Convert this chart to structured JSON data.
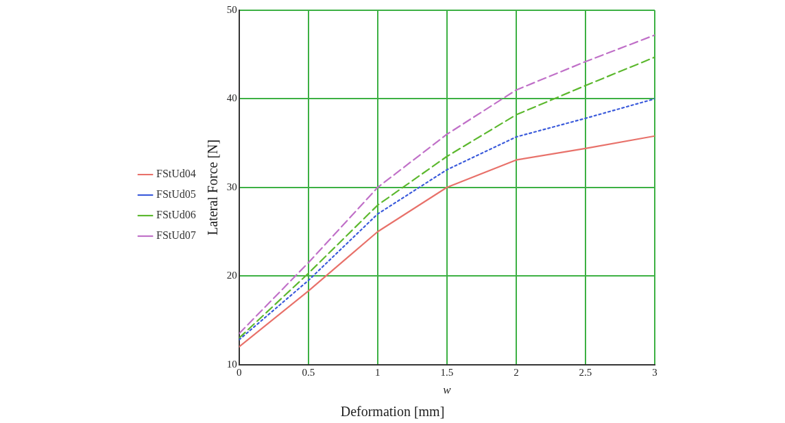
{
  "chart_data": {
    "type": "line",
    "xlabel": "w",
    "ylabel": "Lateral Force [N]",
    "annotations": [
      "Deformation [mm]"
    ],
    "x": [
      0,
      0.5,
      1,
      1.5,
      2,
      2.5,
      3
    ],
    "series": [
      {
        "name": "FStUd04",
        "color": "#e8716a",
        "line_style": "solid",
        "values": [
          12,
          18.3,
          25,
          30,
          33.1,
          34.4,
          35.8
        ]
      },
      {
        "name": "FStUd05",
        "color": "#3b5bdb",
        "line_style": "dotted",
        "values": [
          12.8,
          19.5,
          27,
          32,
          35.7,
          37.8,
          40
        ]
      },
      {
        "name": "FStUd06",
        "color": "#5cb82e",
        "line_style": "dashed",
        "values": [
          13,
          20.3,
          28,
          33.5,
          38.2,
          41.5,
          44.7
        ]
      },
      {
        "name": "FStUd07",
        "color": "#c070c8",
        "line_style": "dashed",
        "values": [
          13.5,
          21.5,
          30,
          36,
          41,
          44.2,
          47.2
        ]
      }
    ],
    "xlim": [
      0,
      3
    ],
    "xticks": [
      0,
      0.5,
      1,
      1.5,
      2,
      2.5,
      3
    ],
    "ylim": [
      10,
      50
    ],
    "yticks": [
      10,
      20,
      30,
      40,
      50
    ],
    "grid": true,
    "legend": "left",
    "marker": "none"
  }
}
